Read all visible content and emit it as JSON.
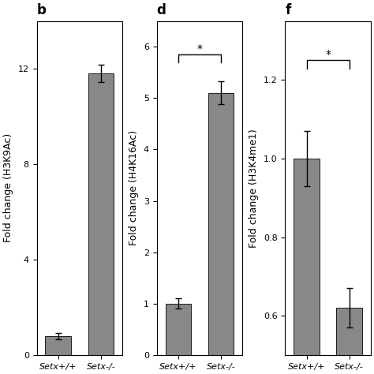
{
  "chart_data": [
    {
      "type": "bar",
      "title": "b",
      "categories": [
        "Setx+/+",
        "Setx-/-"
      ],
      "values": [
        0.8,
        11.8
      ],
      "errors": [
        0.12,
        0.35
      ],
      "ylabel": "Fold change (H3K9Ac)",
      "ylim": [
        0,
        14
      ],
      "yticks": [
        0,
        4,
        8,
        12
      ],
      "color": "#888888"
    },
    {
      "type": "bar",
      "title": "d",
      "categories": [
        "Setx+/+",
        "Setx-/-"
      ],
      "values": [
        1.0,
        5.1
      ],
      "errors": [
        0.1,
        0.22
      ],
      "ylabel": "Fold change (H4K16Ac)",
      "ylim": [
        0,
        6.5
      ],
      "yticks": [
        0,
        1,
        2,
        3,
        4,
        5,
        6
      ],
      "color": "#888888",
      "annotations": [
        {
          "text": "*",
          "y": 5.85
        }
      ]
    },
    {
      "type": "bar",
      "title": "f",
      "categories": [
        "Setx+/+",
        "Setx-/-"
      ],
      "values": [
        1.0,
        0.62
      ],
      "errors": [
        0.07,
        0.05
      ],
      "ylabel": "Fold change (H3K4me1)",
      "ylim": [
        0.5,
        1.35
      ],
      "yticks": [
        0.6,
        0.8,
        1.0,
        1.2
      ],
      "color": "#888888",
      "annotations": [
        {
          "text": "*",
          "y": 1.25
        }
      ]
    }
  ]
}
